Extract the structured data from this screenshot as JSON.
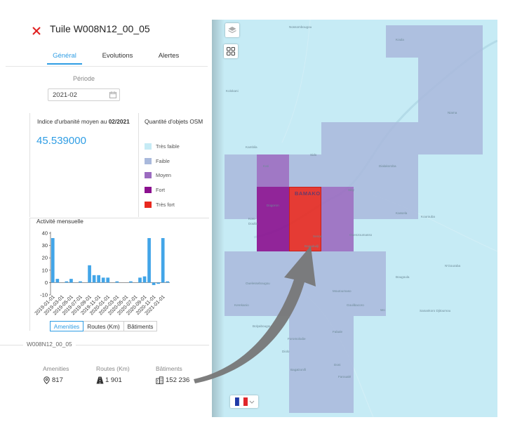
{
  "header": {
    "title": "Tuile W008N12_00_05"
  },
  "tabs": [
    {
      "label": "Général",
      "active": true
    },
    {
      "label": "Evolutions",
      "active": false
    },
    {
      "label": "Alertes",
      "active": false
    }
  ],
  "period": {
    "label": "Période",
    "value": "2021-02"
  },
  "urbanity": {
    "label": "Indice d'urbanité moyen au ",
    "date": "02/2021",
    "value": "45.539000"
  },
  "osm_legend": {
    "title": "Quantité d'objets OSM",
    "items": [
      {
        "label": "Très faible",
        "color": "#c6ebf5"
      },
      {
        "label": "Faible",
        "color": "#a9b9dc"
      },
      {
        "label": "Moyen",
        "color": "#9b6bc0"
      },
      {
        "label": "Fort",
        "color": "#8b108f"
      },
      {
        "label": "Très fort",
        "color": "#e8281f"
      }
    ]
  },
  "activity": {
    "title": "Activité mensuelle"
  },
  "chart_data": {
    "type": "bar",
    "title": "",
    "xlabel": "",
    "ylabel": "",
    "ylim": [
      -10,
      40
    ],
    "yticks": [
      -10,
      0,
      10,
      20,
      30,
      40
    ],
    "grid": false,
    "color": "#42a5e8",
    "tick_labels": [
      "2019-01-01",
      "2019-03-01",
      "2019-05-01",
      "2019-07-01",
      "2019-09-01",
      "2019-11-01",
      "2020-01-01",
      "2020-03-01",
      "2020-05-01",
      "2020-07-01",
      "2020-09-01",
      "2020-11-01",
      "2021-01-01"
    ],
    "categories": [
      "2019-01",
      "2019-02",
      "2019-03",
      "2019-04",
      "2019-05",
      "2019-06",
      "2019-07",
      "2019-08",
      "2019-09",
      "2019-10",
      "2019-11",
      "2019-12",
      "2020-01",
      "2020-02",
      "2020-03",
      "2020-04",
      "2020-05",
      "2020-06",
      "2020-07",
      "2020-08",
      "2020-09",
      "2020-10",
      "2020-11",
      "2020-12",
      "2021-01",
      "2021-02"
    ],
    "values": [
      36,
      3,
      0,
      1,
      3,
      0,
      1,
      0,
      14,
      6,
      6,
      4,
      4,
      0,
      1,
      0,
      0,
      1,
      0,
      4,
      5,
      36,
      -2,
      -1,
      36,
      1
    ]
  },
  "segments": [
    {
      "label": "Amenities",
      "active": true
    },
    {
      "label": "Routes (Km)",
      "active": false
    },
    {
      "label": "Bâtiments",
      "active": false
    }
  ],
  "section": {
    "label": "W008N12_00_05"
  },
  "stats": [
    {
      "label": "Amenities",
      "value": "817",
      "icon": "map-pin-icon"
    },
    {
      "label": "Routes (Km)",
      "value": "1 901",
      "icon": "road-icon"
    },
    {
      "label": "Bâtiments",
      "value": "152 236",
      "icon": "building-icon"
    }
  ],
  "map": {
    "city_main": "BAMAKO",
    "places": [
      "Nossombougou",
      "Kolokani",
      "Koula",
      "Kati",
      "Kambila",
      "Sido",
      "Dialakoroba",
      "Doulla",
      "Bagadadji",
      "Ouelessebougou",
      "Kassela",
      "Kourouba",
      "Siby",
      "Dogoron",
      "Ouenzoumasso",
      "Koro",
      "Niama",
      "Senou",
      "Moutoumaso",
      "N'Gouraba",
      "Goulibacoro",
      "Kerekanio",
      "Bougoula",
      "Foromolodie",
      "Diolo",
      "Bolyabougou",
      "Wo",
      "Fabale",
      "Sanankoro Djitoumou",
      "Doni",
      "Gonifi",
      "Baga",
      "Faroualé"
    ]
  },
  "flag": {
    "name": "france-flag-icon"
  }
}
